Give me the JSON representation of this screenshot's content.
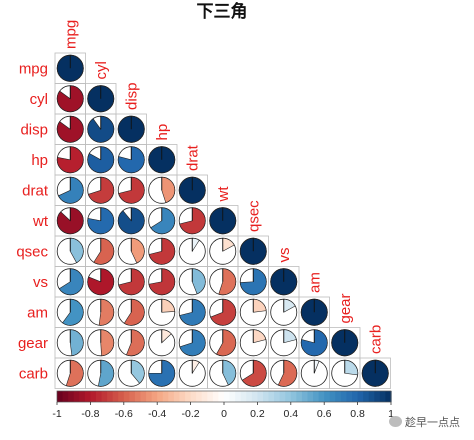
{
  "chart_data": {
    "type": "heatmap",
    "subtype": "correlation-pie-lower-triangle",
    "title": "下三角",
    "variables": [
      "mpg",
      "cyl",
      "disp",
      "hp",
      "drat",
      "wt",
      "qsec",
      "vs",
      "am",
      "gear",
      "carb"
    ],
    "matrix": [
      [
        1.0
      ],
      [
        -0.85,
        1.0
      ],
      [
        -0.85,
        0.9,
        1.0
      ],
      [
        -0.78,
        0.83,
        0.79,
        1.0
      ],
      [
        0.68,
        -0.7,
        -0.71,
        -0.45,
        1.0
      ],
      [
        -0.87,
        0.78,
        0.89,
        0.66,
        -0.71,
        1.0
      ],
      [
        0.42,
        -0.59,
        -0.43,
        -0.71,
        0.09,
        -0.17,
        1.0
      ],
      [
        0.66,
        -0.81,
        -0.71,
        -0.72,
        0.44,
        -0.55,
        0.74,
        1.0
      ],
      [
        0.6,
        -0.52,
        -0.59,
        -0.24,
        0.71,
        -0.69,
        -0.23,
        0.17,
        1.0
      ],
      [
        0.48,
        -0.49,
        -0.56,
        -0.13,
        0.7,
        -0.58,
        -0.21,
        0.21,
        0.79,
        1.0
      ],
      [
        -0.55,
        0.53,
        0.39,
        0.75,
        -0.09,
        0.43,
        -0.66,
        -0.57,
        0.06,
        0.27,
        1.0
      ]
    ],
    "color_scale": {
      "range": [
        -1,
        1
      ],
      "ticks": [
        "-1",
        "-0.8",
        "-0.6",
        "-0.4",
        "-0.2",
        "0",
        "0.2",
        "0.4",
        "0.6",
        "0.8",
        "1"
      ],
      "colors": [
        "#67001F",
        "#B2182B",
        "#D6604D",
        "#F4A582",
        "#FDDBC7",
        "#FFFFFF",
        "#D1E5F0",
        "#92C5DE",
        "#4393C3",
        "#2166AC",
        "#053061"
      ]
    },
    "label_color": "#e8201f",
    "legend_placement": "bottom"
  },
  "watermark": {
    "text": "趁早一点点",
    "icon": "wechat-icon"
  }
}
